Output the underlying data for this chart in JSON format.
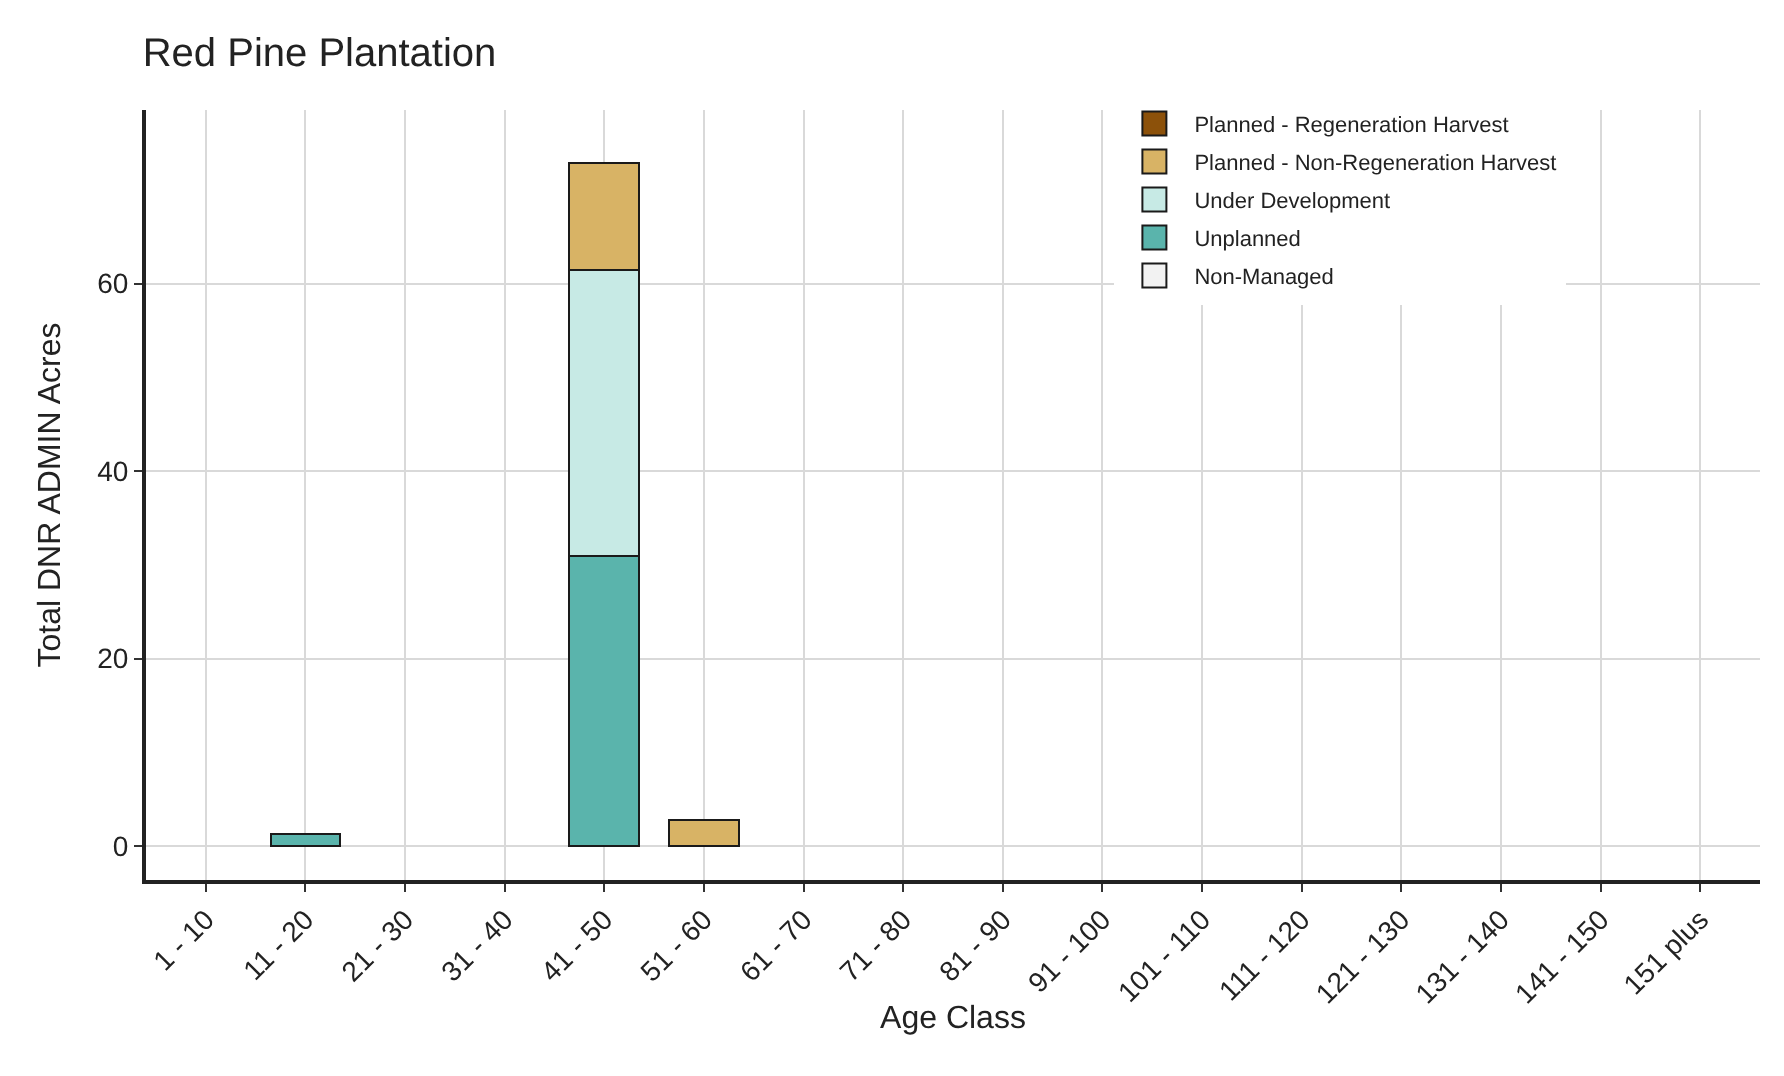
{
  "chart_data": {
    "type": "bar",
    "title": "Red Pine Plantation",
    "xlabel": "Age Class",
    "ylabel": "Total DNR ADMIN Acres",
    "categories": [
      "1 - 10",
      "11 - 20",
      "21 - 30",
      "31 - 40",
      "41 - 50",
      "51 - 60",
      "61 - 70",
      "71 - 80",
      "81 - 90",
      "91 - 100",
      "101 - 110",
      "111 - 120",
      "121 - 130",
      "131 - 140",
      "141 - 150",
      "151 plus"
    ],
    "stacked": true,
    "series": [
      {
        "name": "Non-Managed",
        "color": "#f2f2f2",
        "values": [
          null,
          null,
          null,
          null,
          null,
          null,
          null,
          null,
          null,
          null,
          null,
          null,
          null,
          null,
          null,
          null
        ]
      },
      {
        "name": "Unplanned",
        "color": "#5ab4ac",
        "values": [
          null,
          1.3,
          null,
          null,
          31,
          null,
          null,
          null,
          null,
          null,
          null,
          null,
          null,
          null,
          null,
          null
        ]
      },
      {
        "name": "Under Development",
        "color": "#c7eae5",
        "values": [
          null,
          null,
          null,
          null,
          30.4,
          null,
          null,
          null,
          null,
          null,
          null,
          null,
          null,
          null,
          null,
          null
        ]
      },
      {
        "name": "Planned - Non-Regeneration Harvest",
        "color": "#d8b365",
        "values": [
          null,
          null,
          null,
          null,
          11.4,
          2.8,
          null,
          null,
          null,
          null,
          null,
          null,
          null,
          null,
          null,
          null
        ]
      },
      {
        "name": "Planned - Regeneration Harvest",
        "color": "#8c510a",
        "values": [
          null,
          null,
          null,
          null,
          null,
          null,
          null,
          null,
          null,
          null,
          null,
          null,
          null,
          null,
          null,
          null
        ]
      }
    ],
    "ylim": [
      -3.6,
      78.5
    ],
    "yticks": [
      0,
      20,
      40,
      60
    ],
    "grid": true,
    "legend": "top right"
  }
}
